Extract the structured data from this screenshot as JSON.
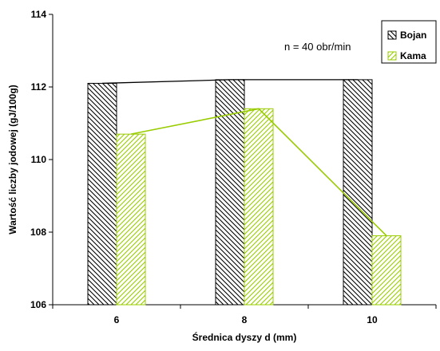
{
  "chart_data": {
    "type": "bar",
    "categories": [
      "6",
      "8",
      "10"
    ],
    "series": [
      {
        "name": "Bojan",
        "values": [
          112.1,
          112.2,
          112.2
        ],
        "pattern": "back-diagonal",
        "color": "#000000",
        "line_color": "#000000"
      },
      {
        "name": "Kama",
        "values": [
          110.7,
          111.4,
          107.9
        ],
        "pattern": "forward-diagonal",
        "color": "#99cc00",
        "line_color": "#99cc00"
      }
    ],
    "xlabel": "Średnica dyszy d (mm)",
    "ylabel": "Wartość liczby jodowej (gJ/100g)",
    "ylim": [
      106,
      114
    ],
    "yticks": [
      "106",
      "108",
      "110",
      "112",
      "114"
    ],
    "annotation": "n = 40 obr/min",
    "legend_position": "top-right",
    "grid": false
  }
}
